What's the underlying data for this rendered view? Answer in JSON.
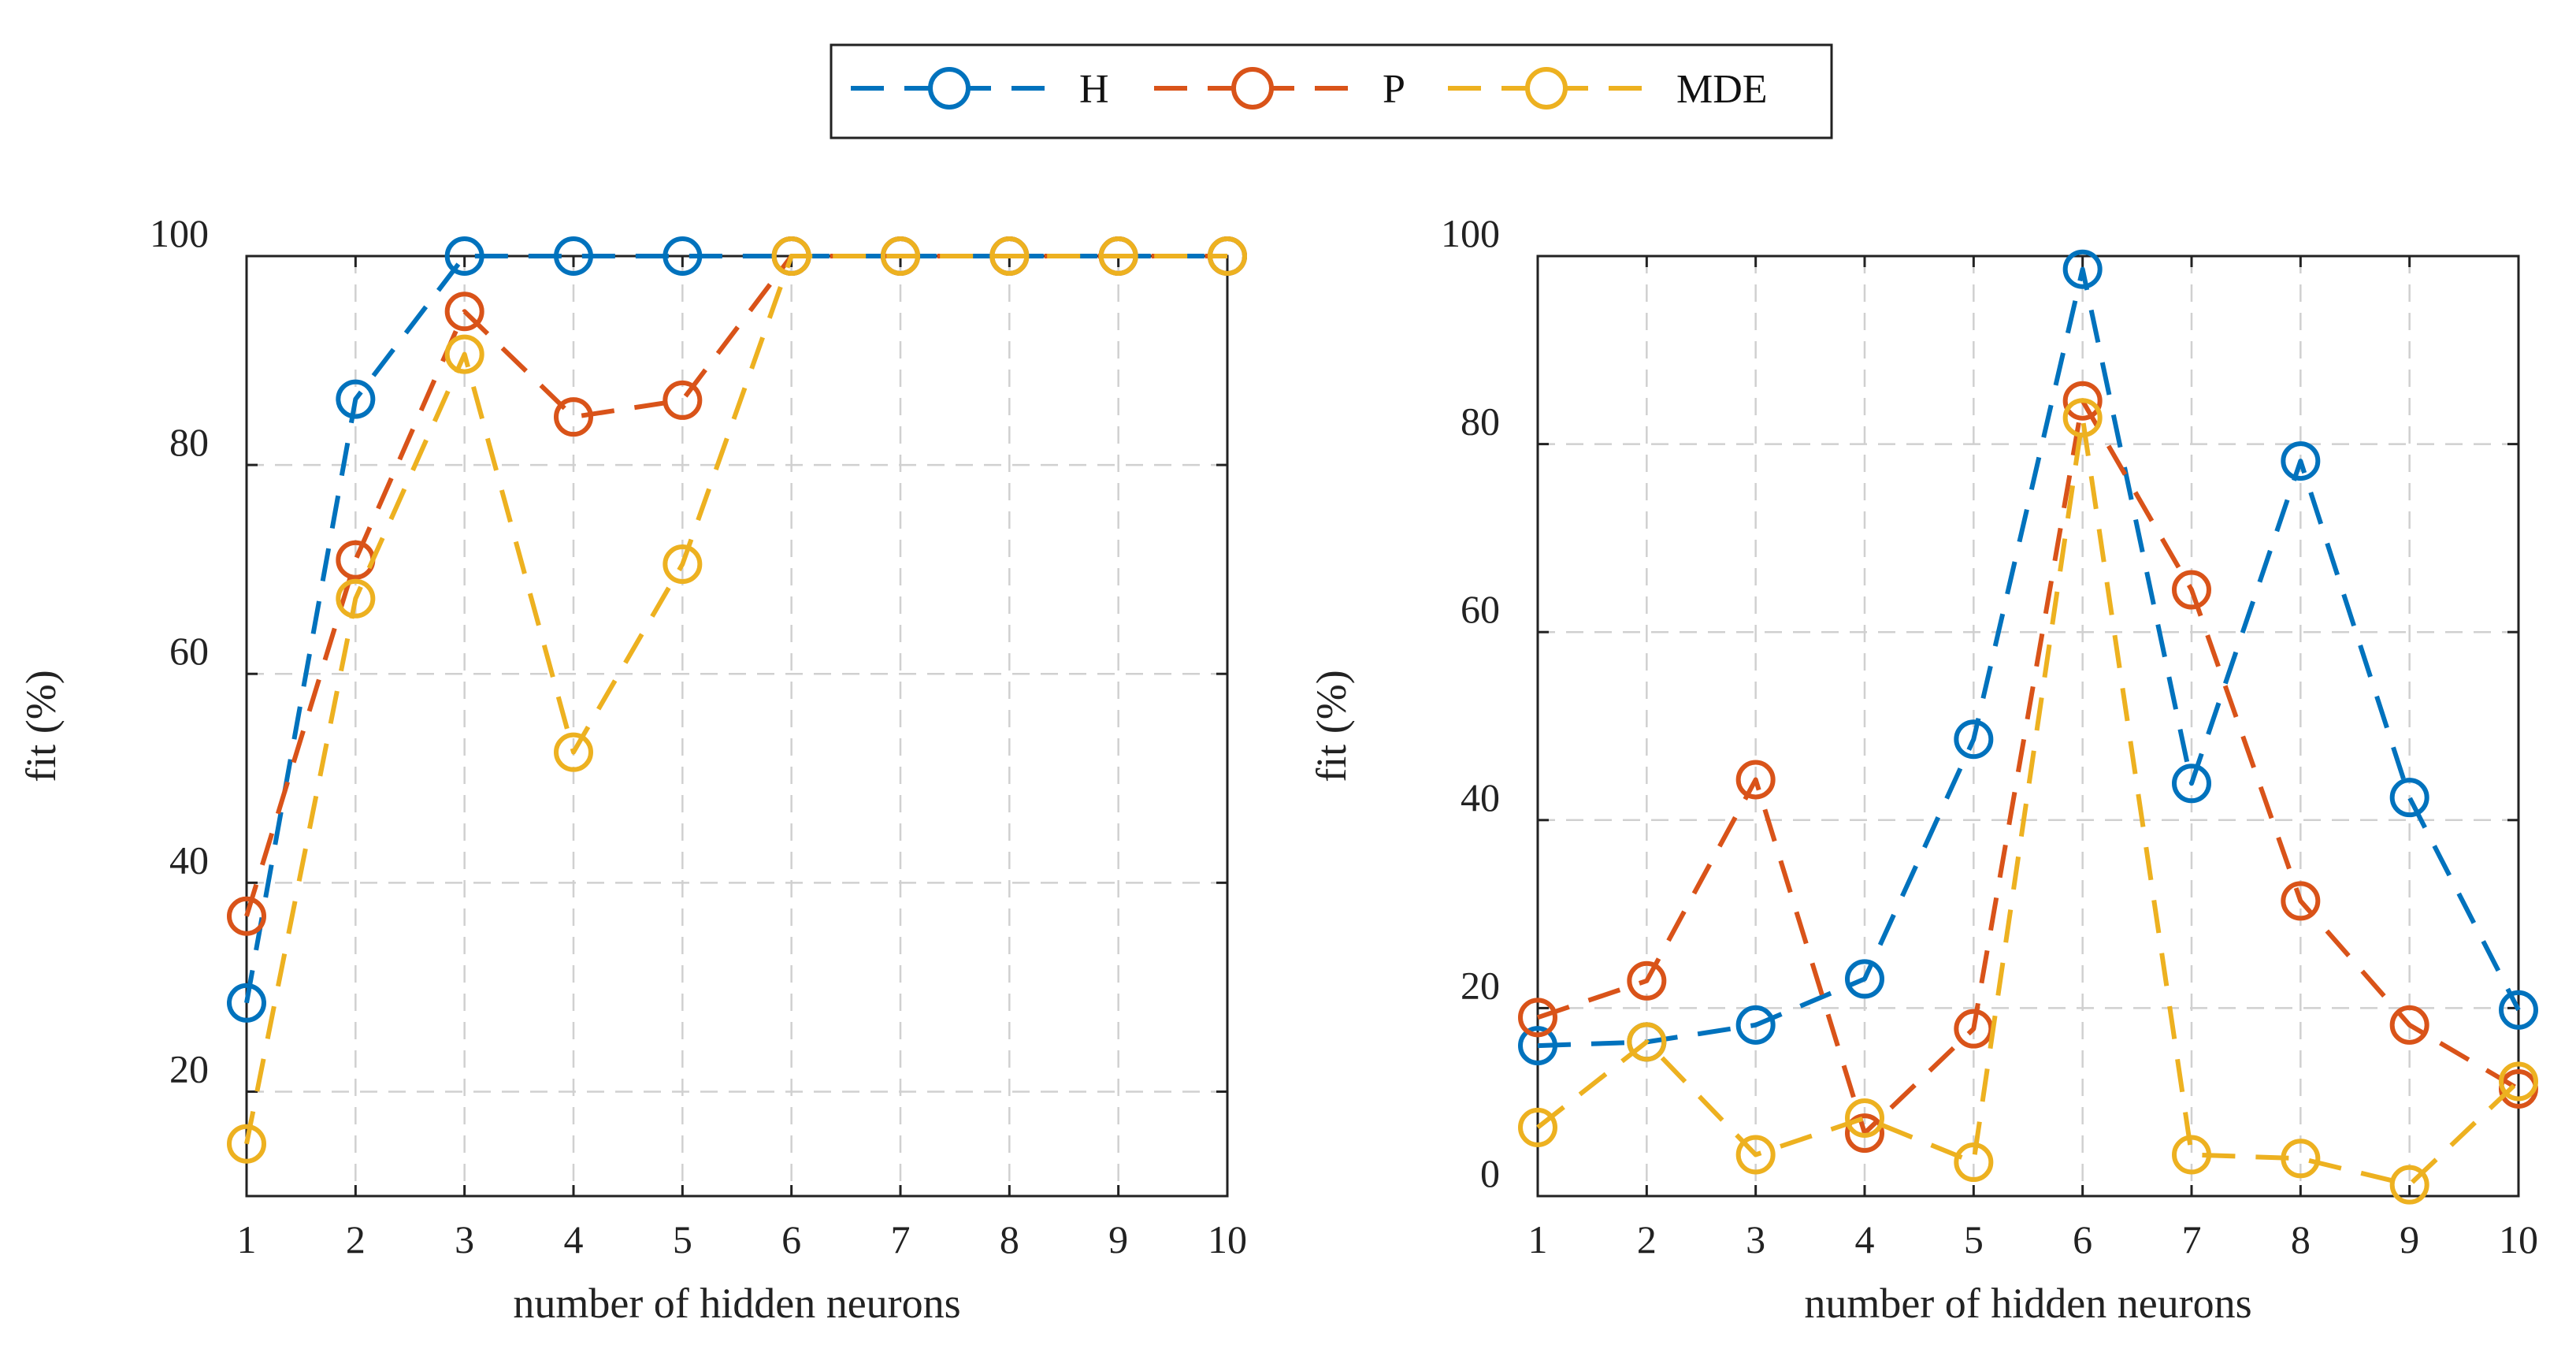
{
  "legend": {
    "items": [
      {
        "name": "H",
        "color": "#0072BD"
      },
      {
        "name": "P",
        "color": "#D95319"
      },
      {
        "name": "MDE",
        "color": "#EDB120"
      }
    ]
  },
  "chart_data": [
    {
      "type": "line",
      "xlabel": "number of hidden neurons",
      "ylabel": "fit (%)",
      "xlim": [
        1,
        10
      ],
      "ylim": [
        10,
        100
      ],
      "xticks": [
        "1",
        "2",
        "3",
        "4",
        "5",
        "6",
        "7",
        "8",
        "9",
        "10"
      ],
      "yticks": [
        "20",
        "40",
        "60",
        "80",
        "100"
      ],
      "grid": true,
      "x": [
        1,
        2,
        3,
        4,
        5,
        6,
        7,
        8,
        9,
        10
      ],
      "series": [
        {
          "name": "H",
          "color": "#0072BD",
          "values": [
            28.5,
            86.3,
            100,
            100,
            100,
            100,
            100,
            100,
            100,
            100
          ]
        },
        {
          "name": "P",
          "color": "#D95319",
          "values": [
            36.8,
            70.9,
            94.7,
            84.6,
            86.2,
            100,
            100,
            100,
            100,
            100
          ]
        },
        {
          "name": "MDE",
          "color": "#EDB120",
          "values": [
            15.0,
            67.2,
            90.6,
            52.5,
            70.5,
            100,
            100,
            100,
            100,
            100
          ]
        }
      ]
    },
    {
      "type": "line",
      "xlabel": "number of hidden neurons",
      "ylabel": "fit (%)",
      "xlim": [
        1,
        10
      ],
      "ylim": [
        0,
        100
      ],
      "xticks": [
        "1",
        "2",
        "3",
        "4",
        "5",
        "6",
        "7",
        "8",
        "9",
        "10"
      ],
      "yticks": [
        "0",
        "20",
        "40",
        "60",
        "80",
        "100"
      ],
      "grid": true,
      "x": [
        1,
        2,
        3,
        4,
        5,
        6,
        7,
        8,
        9,
        10
      ],
      "series": [
        {
          "name": "H",
          "color": "#0072BD",
          "values": [
            16.0,
            16.4,
            18.2,
            23.1,
            48.6,
            98.6,
            43.9,
            78.2,
            42.4,
            19.8
          ]
        },
        {
          "name": "P",
          "color": "#D95319",
          "values": [
            19.0,
            22.9,
            44.3,
            6.7,
            17.8,
            84.6,
            64.5,
            31.4,
            18.2,
            11.4
          ]
        },
        {
          "name": "MDE",
          "color": "#EDB120",
          "values": [
            7.3,
            16.4,
            4.4,
            8.3,
            3.6,
            82.8,
            4.4,
            4.0,
            1.2,
            12.2
          ]
        }
      ]
    }
  ]
}
